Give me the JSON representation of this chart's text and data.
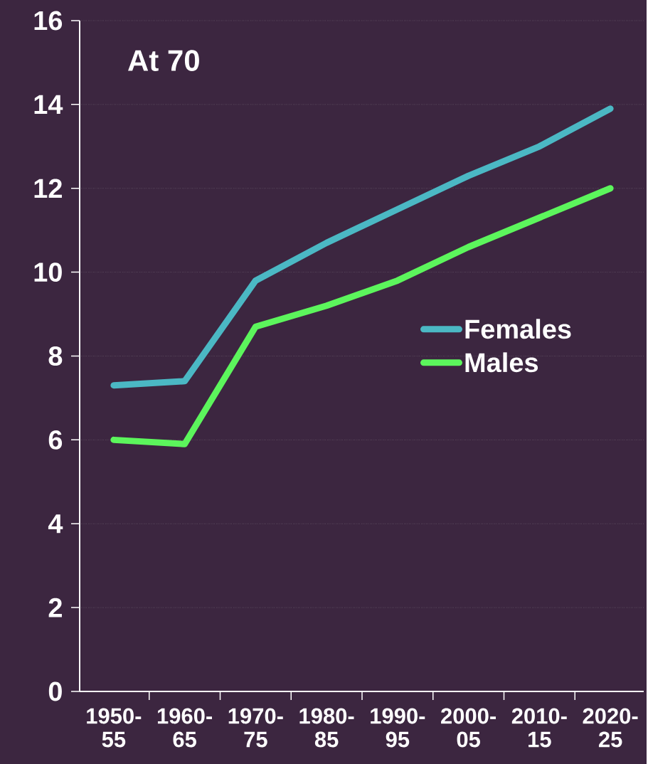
{
  "chart_data": {
    "type": "line",
    "title": "At 70",
    "categories": [
      "1950-55",
      "1960-65",
      "1970-75",
      "1980-85",
      "1990-95",
      "2000-05",
      "2010-15",
      "2020-25"
    ],
    "series": [
      {
        "name": "Females",
        "color": "#4bb8c4",
        "values": [
          7.3,
          7.4,
          9.8,
          10.7,
          11.5,
          12.3,
          13.0,
          13.9
        ]
      },
      {
        "name": "Males",
        "color": "#5cf55c",
        "values": [
          6.0,
          5.9,
          8.7,
          9.2,
          9.8,
          10.6,
          11.3,
          12.0
        ]
      }
    ],
    "ylim": [
      0,
      16
    ],
    "yticks": [
      0,
      2,
      4,
      6,
      8,
      10,
      12,
      14,
      16
    ],
    "grid": "y",
    "legend": "right",
    "marker": "none",
    "line_style": "solid"
  }
}
